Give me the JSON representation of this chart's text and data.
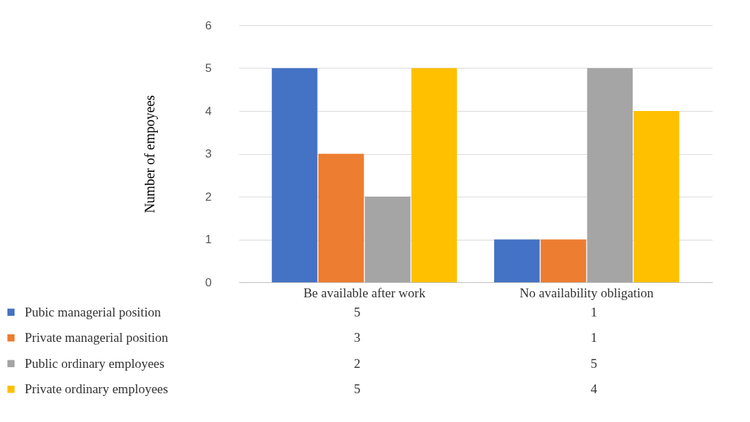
{
  "chart_data": {
    "type": "bar",
    "ylabel": "Number of empoyees",
    "categories": [
      "Be available  after work",
      "No availability obligation"
    ],
    "series": [
      {
        "name": "Pubic managerial position",
        "color": "#4472c4",
        "values": [
          5,
          1
        ]
      },
      {
        "name": "Private managerial position",
        "color": "#ed7d31",
        "values": [
          3,
          1
        ]
      },
      {
        "name": "Public ordinary employees",
        "color": "#a5a5a5",
        "values": [
          2,
          5
        ]
      },
      {
        "name": " Private ordinary employees",
        "color": "#ffc000",
        "values": [
          5,
          4
        ]
      }
    ],
    "ylim": [
      0,
      6
    ],
    "yticks": [
      0,
      1,
      2,
      3,
      4,
      5,
      6
    ],
    "grid": "y",
    "legend": "bottom",
    "data_labels": true
  }
}
